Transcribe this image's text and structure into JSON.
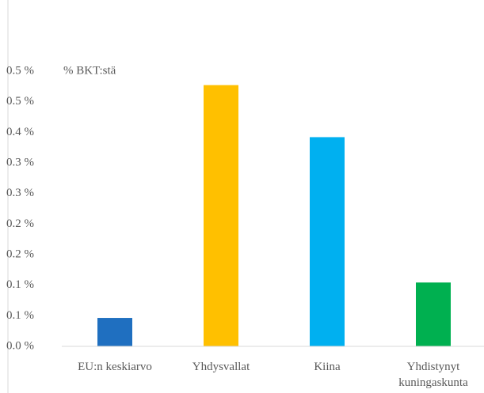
{
  "chart_data": {
    "type": "bar",
    "y_axis_label": "% BKT:stä",
    "categories": [
      "EU:n keskiarvo",
      "Yhdysvallat",
      "Kiina",
      "Yhdistynyt kuningaskunta"
    ],
    "values": [
      0.053,
      0.487,
      0.39,
      0.119
    ],
    "colors": [
      "#1f6fc0",
      "#ffc000",
      "#00b0f0",
      "#00b050"
    ],
    "ylim": [
      0,
      0.513
    ],
    "yticks": [
      {
        "value": 0,
        "label": "0.0 %"
      },
      {
        "value": 0.057,
        "label": "0.1 %"
      },
      {
        "value": 0.114,
        "label": "0.1 %"
      },
      {
        "value": 0.171,
        "label": "0.2 %"
      },
      {
        "value": 0.228,
        "label": "0.2 %"
      },
      {
        "value": 0.285,
        "label": "0.3 %"
      },
      {
        "value": 0.342,
        "label": "0.3 %"
      },
      {
        "value": 0.399,
        "label": "0.4 %"
      },
      {
        "value": 0.456,
        "label": "0.5 %"
      },
      {
        "value": 0.513,
        "label": "0.5 %"
      }
    ],
    "grid": false
  }
}
